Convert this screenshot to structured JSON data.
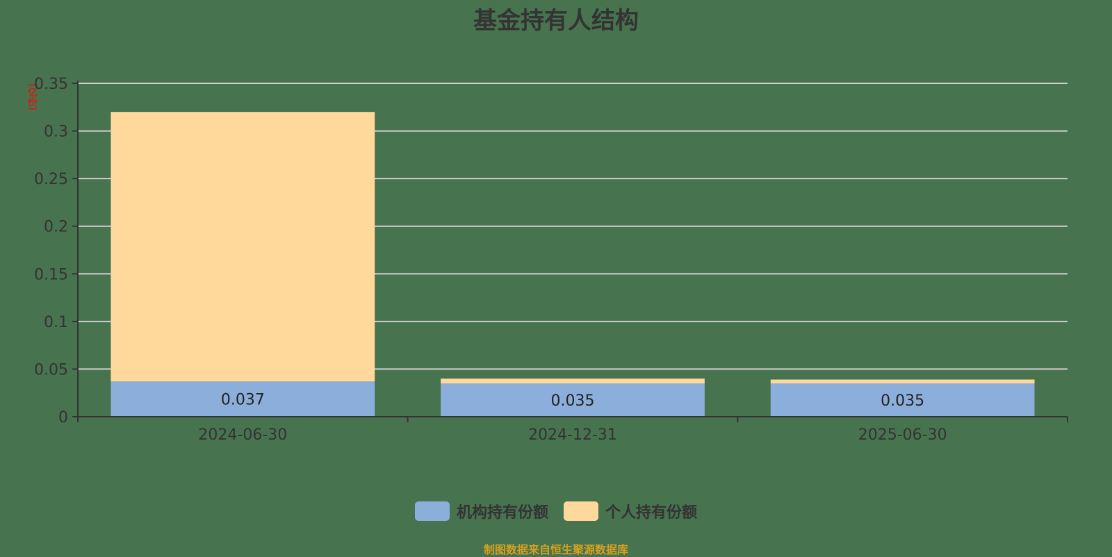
{
  "header": {
    "title": "基金持有人结构"
  },
  "axis": {
    "y_unit": "(亿份)"
  },
  "legend": [
    {
      "label": "机构持有份额",
      "color": "#8caedb"
    },
    {
      "label": "个人持有份额",
      "color": "#ffd99b"
    }
  ],
  "footer": {
    "source": "制图数据来自恒生聚源数据库"
  },
  "chart_data": {
    "type": "bar",
    "stacked": true,
    "title": "基金持有人结构",
    "xlabel": "",
    "ylabel": "(亿份)",
    "ylim": [
      0,
      0.35
    ],
    "yticks": [
      "0",
      "0.05",
      "0.1",
      "0.15",
      "0.2",
      "0.25",
      "0.3",
      "0.35"
    ],
    "grid": true,
    "legend_position": "bottom",
    "categories": [
      "2024-06-30",
      "2024-12-31",
      "2025-06-30"
    ],
    "series": [
      {
        "name": "机构持有份额",
        "color": "#8caedb",
        "values": [
          0.037,
          0.035,
          0.035
        ],
        "labels": [
          "0.037",
          "0.035",
          "0.035"
        ]
      },
      {
        "name": "个人持有份额",
        "color": "#ffd99b",
        "values": [
          0.283,
          0.005,
          0.004
        ]
      }
    ]
  }
}
